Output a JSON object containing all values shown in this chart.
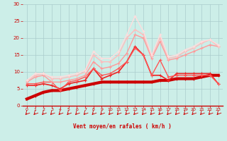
{
  "bg_color": "#cceee8",
  "grid_color": "#aacccc",
  "xlabel": "Vent moyen/en rafales ( km/h )",
  "xlabel_color": "#cc0000",
  "tick_color": "#cc0000",
  "arrow_color": "#cc0000",
  "xlim": [
    -0.5,
    23.5
  ],
  "ylim": [
    0,
    30
  ],
  "yticks": [
    0,
    5,
    10,
    15,
    20,
    25,
    30
  ],
  "xticks": [
    0,
    1,
    2,
    3,
    4,
    5,
    6,
    7,
    8,
    9,
    10,
    11,
    12,
    13,
    14,
    15,
    16,
    17,
    18,
    19,
    20,
    21,
    22,
    23
  ],
  "lines": [
    {
      "x": [
        0,
        1,
        2,
        3,
        4,
        5,
        6,
        7,
        8,
        9,
        10,
        11,
        12,
        13,
        14,
        15,
        16,
        17,
        18,
        19,
        20,
        21,
        22,
        23
      ],
      "y": [
        2,
        3,
        4,
        4.5,
        4.5,
        5,
        5.5,
        6,
        6.5,
        7,
        7,
        7,
        7,
        7,
        7,
        7,
        7.5,
        7.5,
        8,
        8,
        8,
        8.5,
        9,
        9
      ],
      "color": "#cc0000",
      "lw": 3.0,
      "marker": "+",
      "ms": 3.5
    },
    {
      "x": [
        0,
        1,
        2,
        3,
        4,
        5,
        6,
        7,
        8,
        9,
        10,
        11,
        12,
        13,
        14,
        15,
        16,
        17,
        18,
        19,
        20,
        21,
        22,
        23
      ],
      "y": [
        6,
        6,
        6.5,
        6,
        5,
        6.5,
        7,
        7.5,
        11,
        8,
        9,
        10,
        13,
        17.5,
        15,
        9,
        9,
        7.5,
        9.5,
        9.5,
        9.5,
        9.5,
        9.5,
        6.5
      ],
      "color": "#ee2222",
      "lw": 1.2,
      "marker": "+",
      "ms": 3.0
    },
    {
      "x": [
        0,
        1,
        2,
        3,
        4,
        5,
        6,
        7,
        8,
        9,
        10,
        11,
        12,
        13,
        14,
        15,
        16,
        17,
        18,
        19,
        20,
        21,
        22,
        23
      ],
      "y": [
        6.5,
        6.5,
        7,
        7,
        4.5,
        7,
        7.5,
        8.5,
        11,
        9,
        9.5,
        11,
        13,
        17,
        15,
        9,
        13.5,
        8.5,
        9,
        9,
        9,
        9,
        9,
        6.5
      ],
      "color": "#ff5555",
      "lw": 1.0,
      "marker": "+",
      "ms": 2.5
    },
    {
      "x": [
        0,
        1,
        2,
        3,
        4,
        5,
        6,
        7,
        8,
        9,
        10,
        11,
        12,
        13,
        14,
        15,
        16,
        17,
        18,
        19,
        20,
        21,
        22,
        23
      ],
      "y": [
        7,
        8.5,
        9,
        7,
        7,
        7.5,
        8,
        9,
        13,
        11,
        11.5,
        12.5,
        15.5,
        21,
        20,
        14,
        19,
        13.5,
        14,
        15,
        16,
        17,
        18,
        17.5
      ],
      "color": "#ff9999",
      "lw": 1.0,
      "marker": "+",
      "ms": 2.5
    },
    {
      "x": [
        0,
        1,
        2,
        3,
        4,
        5,
        6,
        7,
        8,
        9,
        10,
        11,
        12,
        13,
        14,
        15,
        16,
        17,
        18,
        19,
        20,
        21,
        22,
        23
      ],
      "y": [
        7.5,
        9,
        9.5,
        8,
        8,
        8.5,
        9,
        10,
        15,
        13,
        13,
        15,
        20,
        22.5,
        21,
        14.5,
        20,
        14,
        14.5,
        16,
        17,
        18.5,
        19.5,
        17.5
      ],
      "color": "#ffbbbb",
      "lw": 1.0,
      "marker": "+",
      "ms": 2.5
    },
    {
      "x": [
        0,
        1,
        2,
        3,
        4,
        5,
        6,
        7,
        8,
        9,
        10,
        11,
        12,
        13,
        14,
        15,
        16,
        17,
        18,
        19,
        20,
        21,
        22,
        23
      ],
      "y": [
        7.5,
        9.5,
        9.5,
        8.5,
        8.5,
        9,
        9.5,
        10.5,
        16,
        14,
        14,
        16,
        21,
        26.5,
        22,
        15,
        21,
        14.5,
        15,
        16.5,
        17.5,
        19,
        19.5,
        18
      ],
      "color": "#ffdddd",
      "lw": 1.0,
      "marker": "+",
      "ms": 2.5
    }
  ]
}
